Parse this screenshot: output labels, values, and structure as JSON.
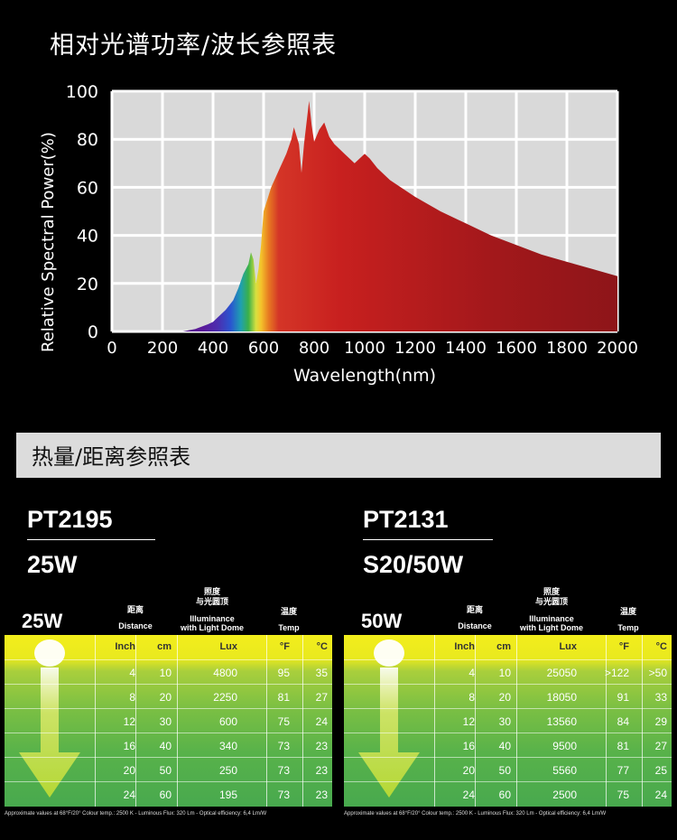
{
  "page": {
    "title": "相对光谱功率/波长参照表",
    "section_title": "热量/距离参照表"
  },
  "chart_data": {
    "type": "area",
    "xlabel": "Wavelength(nm)",
    "ylabel": "Relative Spectral Power(%)",
    "xlim": [
      0,
      2000
    ],
    "ylim": [
      0,
      100
    ],
    "xticks": [
      0,
      200,
      400,
      600,
      800,
      1000,
      1200,
      1400,
      1600,
      1800,
      2000
    ],
    "yticks": [
      0,
      20,
      40,
      60,
      80,
      100
    ],
    "grid": true,
    "x": [
      280,
      330,
      380,
      400,
      420,
      450,
      480,
      500,
      520,
      540,
      550,
      560,
      570,
      580,
      590,
      600,
      630,
      660,
      690,
      710,
      720,
      740,
      750,
      760,
      780,
      790,
      800,
      820,
      840,
      850,
      860,
      880,
      920,
      960,
      1000,
      1020,
      1050,
      1100,
      1200,
      1300,
      1400,
      1500,
      1600,
      1700,
      1800,
      1900,
      2000
    ],
    "y": [
      0,
      1,
      3,
      4,
      6,
      9,
      13,
      18,
      24,
      28,
      33,
      30,
      20,
      26,
      36,
      50,
      60,
      67,
      74,
      80,
      85,
      78,
      66,
      78,
      96,
      86,
      79,
      84,
      87,
      84,
      81,
      78,
      74,
      70,
      74,
      72,
      68,
      63,
      56,
      50,
      45,
      40,
      36,
      32,
      29,
      26,
      23
    ]
  },
  "tables": [
    {
      "model": "PT2195",
      "wattage": "25W",
      "tag": "25W",
      "headers": {
        "distance_cn": "距离",
        "distance_en": "Distance",
        "illum_cn1": "照度",
        "illum_cn2": "与光圆顶",
        "illum_en1": "Illuminance",
        "illum_en2": "with Light Dome",
        "temp_cn": "温度",
        "temp_en": "Temp"
      },
      "columns": [
        "Inch",
        "cm",
        "Lux",
        "°F",
        "°C"
      ],
      "rows": [
        [
          "4",
          "10",
          "4800",
          "95",
          "35"
        ],
        [
          "8",
          "20",
          "2250",
          "81",
          "27"
        ],
        [
          "12",
          "30",
          "600",
          "75",
          "24"
        ],
        [
          "16",
          "40",
          "340",
          "73",
          "23"
        ],
        [
          "20",
          "50",
          "250",
          "73",
          "23"
        ],
        [
          "24",
          "60",
          "195",
          "73",
          "23"
        ]
      ],
      "footnote": "Approximate values at 68°F/20°  Colour temp.: 2500 K - Luminous Flux: 320 Lm - Optical efficiency: 6,4 Lm/W"
    },
    {
      "model": "PT2131",
      "wattage": "S20/50W",
      "tag": "50W",
      "headers": {
        "distance_cn": "距离",
        "distance_en": "Distance",
        "illum_cn1": "照度",
        "illum_cn2": "与光圆顶",
        "illum_en1": "Illuminance",
        "illum_en2": "with Light Dome",
        "temp_cn": "温度",
        "temp_en": "Temp"
      },
      "columns": [
        "Inch",
        "cm",
        "Lux",
        "°F",
        "°C"
      ],
      "rows": [
        [
          "4",
          "10",
          "25050",
          ">122",
          ">50"
        ],
        [
          "8",
          "20",
          "18050",
          "91",
          "33"
        ],
        [
          "12",
          "30",
          "13560",
          "84",
          "29"
        ],
        [
          "16",
          "40",
          "9500",
          "81",
          "27"
        ],
        [
          "20",
          "50",
          "5560",
          "77",
          "25"
        ],
        [
          "24",
          "60",
          "2500",
          "75",
          "24"
        ]
      ],
      "footnote": "Approximate values at 68°F/20°  Colour temp.: 2500 K - Luminous Flux: 320 Lm - Optical efficiency: 6,4 Lm/W"
    }
  ]
}
